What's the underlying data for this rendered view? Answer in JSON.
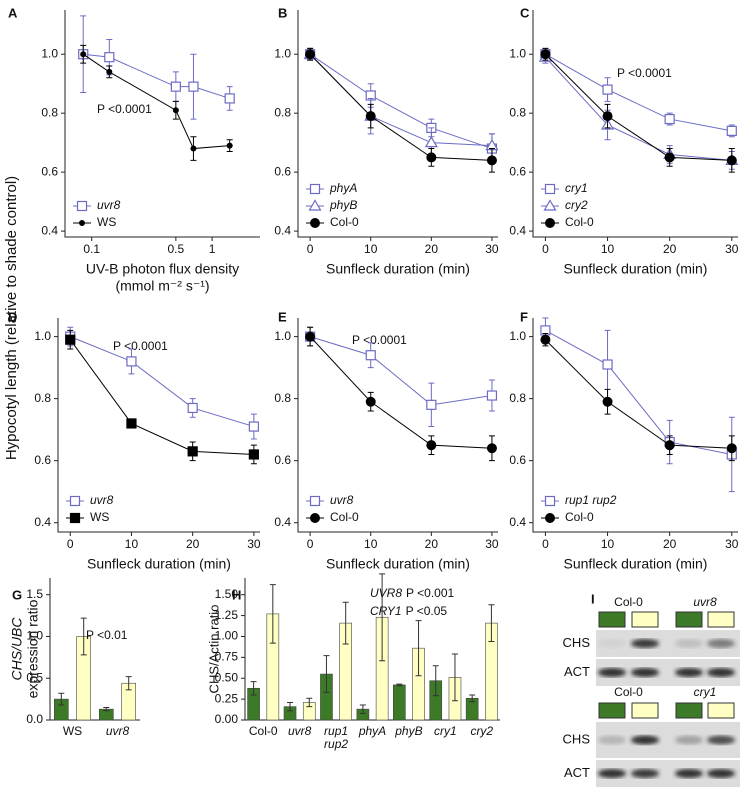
{
  "y_label": "Hypocotyl length (relative to shade control)",
  "chart_data": [
    {
      "panel": "A",
      "type": "line",
      "xlabel": "UV-B photon flux density",
      "xlabel_units": "(mmol m⁻² s⁻¹)",
      "xscale": "log",
      "x": [
        0.085,
        0.14,
        0.5,
        0.7,
        1.4
      ],
      "xlim": [
        0.06,
        2.5
      ],
      "xticks": [
        0.1,
        0.5,
        1
      ],
      "ylim": [
        0.38,
        1.15
      ],
      "yticks": [
        0.4,
        0.6,
        0.8,
        {
          "value": 1,
          "label": "1.0"
        }
      ],
      "annotation": "P <0.0001",
      "series": [
        {
          "name": "uvr8",
          "italic": true,
          "color": "#6b6bc4",
          "marker": "open-square",
          "values": [
            1.0,
            0.99,
            0.89,
            0.89,
            0.85
          ],
          "errors": [
            0.13,
            0.06,
            0.05,
            0.11,
            0.04
          ]
        },
        {
          "name": "WS",
          "italic": false,
          "color": "#000000",
          "marker": "small-circle",
          "values": [
            1.0,
            0.94,
            0.81,
            0.68,
            0.69
          ],
          "errors": [
            0.03,
            0.02,
            0.03,
            0.04,
            0.02
          ]
        }
      ]
    },
    {
      "panel": "B",
      "type": "line",
      "xlabel": "Sunfleck duration (min)",
      "x": [
        0,
        10,
        20,
        30
      ],
      "xlim": [
        -2,
        31
      ],
      "xticks": [
        0,
        10,
        20,
        30
      ],
      "ylim": [
        0.38,
        1.15
      ],
      "yticks": [
        0.4,
        0.6,
        0.8,
        {
          "value": 1,
          "label": "1.0"
        }
      ],
      "series": [
        {
          "name": "phyA",
          "italic": true,
          "color": "#6b6bc4",
          "marker": "open-square",
          "values": [
            1.0,
            0.86,
            0.75,
            0.68
          ],
          "errors": [
            0.02,
            0.04,
            0.03,
            0.05
          ]
        },
        {
          "name": "phyB",
          "italic": true,
          "color": "#6b6bc4",
          "marker": "open-triangle",
          "values": [
            1.0,
            0.79,
            0.7,
            0.69
          ],
          "errors": [
            0.02,
            0.06,
            0.05,
            0.04
          ]
        },
        {
          "name": "Col-0",
          "italic": false,
          "color": "#000000",
          "marker": "filled-circle",
          "values": [
            1.0,
            0.79,
            0.65,
            0.64
          ],
          "errors": [
            0.02,
            0.04,
            0.03,
            0.04
          ]
        }
      ]
    },
    {
      "panel": "C",
      "type": "line",
      "xlabel": "Sunfleck duration (min)",
      "x": [
        0,
        10,
        20,
        30
      ],
      "xlim": [
        -2,
        31
      ],
      "xticks": [
        0,
        10,
        20,
        30
      ],
      "ylim": [
        0.38,
        1.15
      ],
      "yticks": [
        0.4,
        0.6,
        0.8,
        {
          "value": 1,
          "label": "1.0"
        }
      ],
      "annotation": "P <0.0001",
      "series": [
        {
          "name": "cry1",
          "italic": true,
          "color": "#6b6bc4",
          "marker": "open-square",
          "values": [
            1.0,
            0.88,
            0.78,
            0.74
          ],
          "errors": [
            0.02,
            0.04,
            0.02,
            0.02
          ]
        },
        {
          "name": "cry2",
          "italic": true,
          "color": "#6b6bc4",
          "marker": "open-triangle",
          "values": [
            0.99,
            0.76,
            0.66,
            0.64
          ],
          "errors": [
            0.02,
            0.05,
            0.03,
            0.03
          ]
        },
        {
          "name": "Col-0",
          "italic": false,
          "color": "#000000",
          "marker": "filled-circle",
          "values": [
            1.0,
            0.79,
            0.65,
            0.64
          ],
          "errors": [
            0.02,
            0.04,
            0.03,
            0.04
          ]
        }
      ]
    },
    {
      "panel": "D",
      "type": "line",
      "xlabel": "Sunfleck duration (min)",
      "x": [
        0,
        10,
        20,
        30
      ],
      "xlim": [
        -2,
        31
      ],
      "xticks": [
        0,
        10,
        20,
        30
      ],
      "ylim": [
        0.37,
        1.06
      ],
      "yticks": [
        0.4,
        0.6,
        0.8,
        {
          "value": 1,
          "label": "1.0"
        }
      ],
      "annotation": "P <0.0001",
      "series": [
        {
          "name": "uvr8",
          "italic": true,
          "color": "#6b6bc4",
          "marker": "open-square",
          "values": [
            1.0,
            0.92,
            0.77,
            0.71
          ],
          "errors": [
            0.03,
            0.04,
            0.03,
            0.04
          ]
        },
        {
          "name": "WS",
          "italic": false,
          "color": "#000000",
          "marker": "filled-square",
          "values": [
            0.99,
            0.72,
            0.63,
            0.62
          ],
          "errors": [
            0.03,
            0.01,
            0.03,
            0.03
          ]
        }
      ]
    },
    {
      "panel": "E",
      "type": "line",
      "xlabel": "Sunfleck duration (min)",
      "x": [
        0,
        10,
        20,
        30
      ],
      "xlim": [
        -2,
        31
      ],
      "xticks": [
        0,
        10,
        20,
        30
      ],
      "ylim": [
        0.37,
        1.06
      ],
      "yticks": [
        0.4,
        0.6,
        0.8,
        {
          "value": 1,
          "label": "1.0"
        }
      ],
      "annotation": "P <0.0001",
      "series": [
        {
          "name": "uvr8",
          "italic": true,
          "color": "#6b6bc4",
          "marker": "open-square",
          "values": [
            1.0,
            0.94,
            0.78,
            0.81
          ],
          "errors": [
            0.03,
            0.04,
            0.07,
            0.05
          ]
        },
        {
          "name": "Col-0",
          "italic": false,
          "color": "#000000",
          "marker": "filled-circle",
          "values": [
            1.0,
            0.79,
            0.65,
            0.64
          ],
          "errors": [
            0.03,
            0.03,
            0.03,
            0.04
          ]
        }
      ]
    },
    {
      "panel": "F",
      "type": "line",
      "xlabel": "Sunfleck duration (min)",
      "x": [
        0,
        10,
        20,
        30
      ],
      "xlim": [
        -2,
        31
      ],
      "xticks": [
        0,
        10,
        20,
        30
      ],
      "ylim": [
        0.37,
        1.06
      ],
      "yticks": [
        0.4,
        0.6,
        0.8,
        {
          "value": 1,
          "label": "1.0"
        }
      ],
      "series": [
        {
          "name": "rup1 rup2",
          "italic": true,
          "color": "#6b6bc4",
          "marker": "open-square",
          "values": [
            1.02,
            0.91,
            0.66,
            0.62
          ],
          "errors": [
            0.04,
            0.11,
            0.07,
            0.12
          ]
        },
        {
          "name": "Col-0",
          "italic": false,
          "color": "#000000",
          "marker": "filled-circle",
          "values": [
            0.99,
            0.79,
            0.65,
            0.64
          ],
          "errors": [
            0.02,
            0.04,
            0.03,
            0.04
          ]
        }
      ]
    },
    {
      "panel": "G",
      "type": "bar",
      "ylabel": [
        "CHS/UBC",
        "expression ratio"
      ],
      "categories": [
        "WS",
        "uvr8"
      ],
      "italic_categories": [
        false,
        true
      ],
      "ylim": [
        0,
        1.7
      ],
      "yticks": [
        {
          "value": 0,
          "label": "0.0"
        },
        0.5,
        {
          "value": 1,
          "label": "1.0"
        },
        1.5
      ],
      "annotation": "P <0.01",
      "series": [
        {
          "color": "#3d7a27",
          "values": [
            0.25,
            0.13
          ],
          "errors": [
            0.07,
            0.02
          ]
        },
        {
          "color": "#ffffc4",
          "values": [
            1.0,
            0.44
          ],
          "errors": [
            0.22,
            0.08
          ]
        }
      ]
    },
    {
      "panel": "H",
      "type": "bar",
      "ylabel": "CHS/Actin ratio",
      "categories": [
        "Col-0",
        "uvr8",
        "rup1 rup2",
        "phyA",
        "phyB",
        "cry1",
        "cry2"
      ],
      "italic_categories": [
        false,
        true,
        true,
        true,
        true,
        true,
        true
      ],
      "ylim": [
        0,
        1.7
      ],
      "yticks": [
        {
          "value": 0,
          "label": "0.00"
        },
        0.25,
        {
          "value": 0.5,
          "label": "0.50"
        },
        0.75,
        {
          "value": 1,
          "label": "1.00"
        },
        1.25,
        {
          "value": 1.5,
          "label": "1.50"
        }
      ],
      "annotations": [
        {
          "gene": "UVR8",
          "text": "P <0.001"
        },
        {
          "gene": "CRY1",
          "text": "P <0.05"
        }
      ],
      "series": [
        {
          "color": "#3d7a27",
          "values": [
            0.38,
            0.16,
            0.55,
            0.13,
            0.42,
            0.47,
            0.26
          ],
          "errors": [
            0.08,
            0.05,
            0.22,
            0.05,
            0.01,
            0.18,
            0.04
          ]
        },
        {
          "color": "#ffffc4",
          "values": [
            1.27,
            0.21,
            1.16,
            1.23,
            0.86,
            0.51,
            1.16
          ],
          "errors": [
            0.35,
            0.05,
            0.25,
            0.52,
            0.33,
            0.28,
            0.22
          ]
        }
      ]
    }
  ],
  "blot": {
    "panel": "I",
    "blocks": [
      {
        "genotypes": [
          "Col-0",
          "uvr8"
        ],
        "italic": [
          false,
          true
        ],
        "rows": [
          "CHS",
          "ACT"
        ]
      },
      {
        "genotypes": [
          "Col-0",
          "cry1"
        ],
        "italic": [
          false,
          true
        ],
        "rows": [
          "CHS",
          "ACT"
        ]
      }
    ]
  }
}
